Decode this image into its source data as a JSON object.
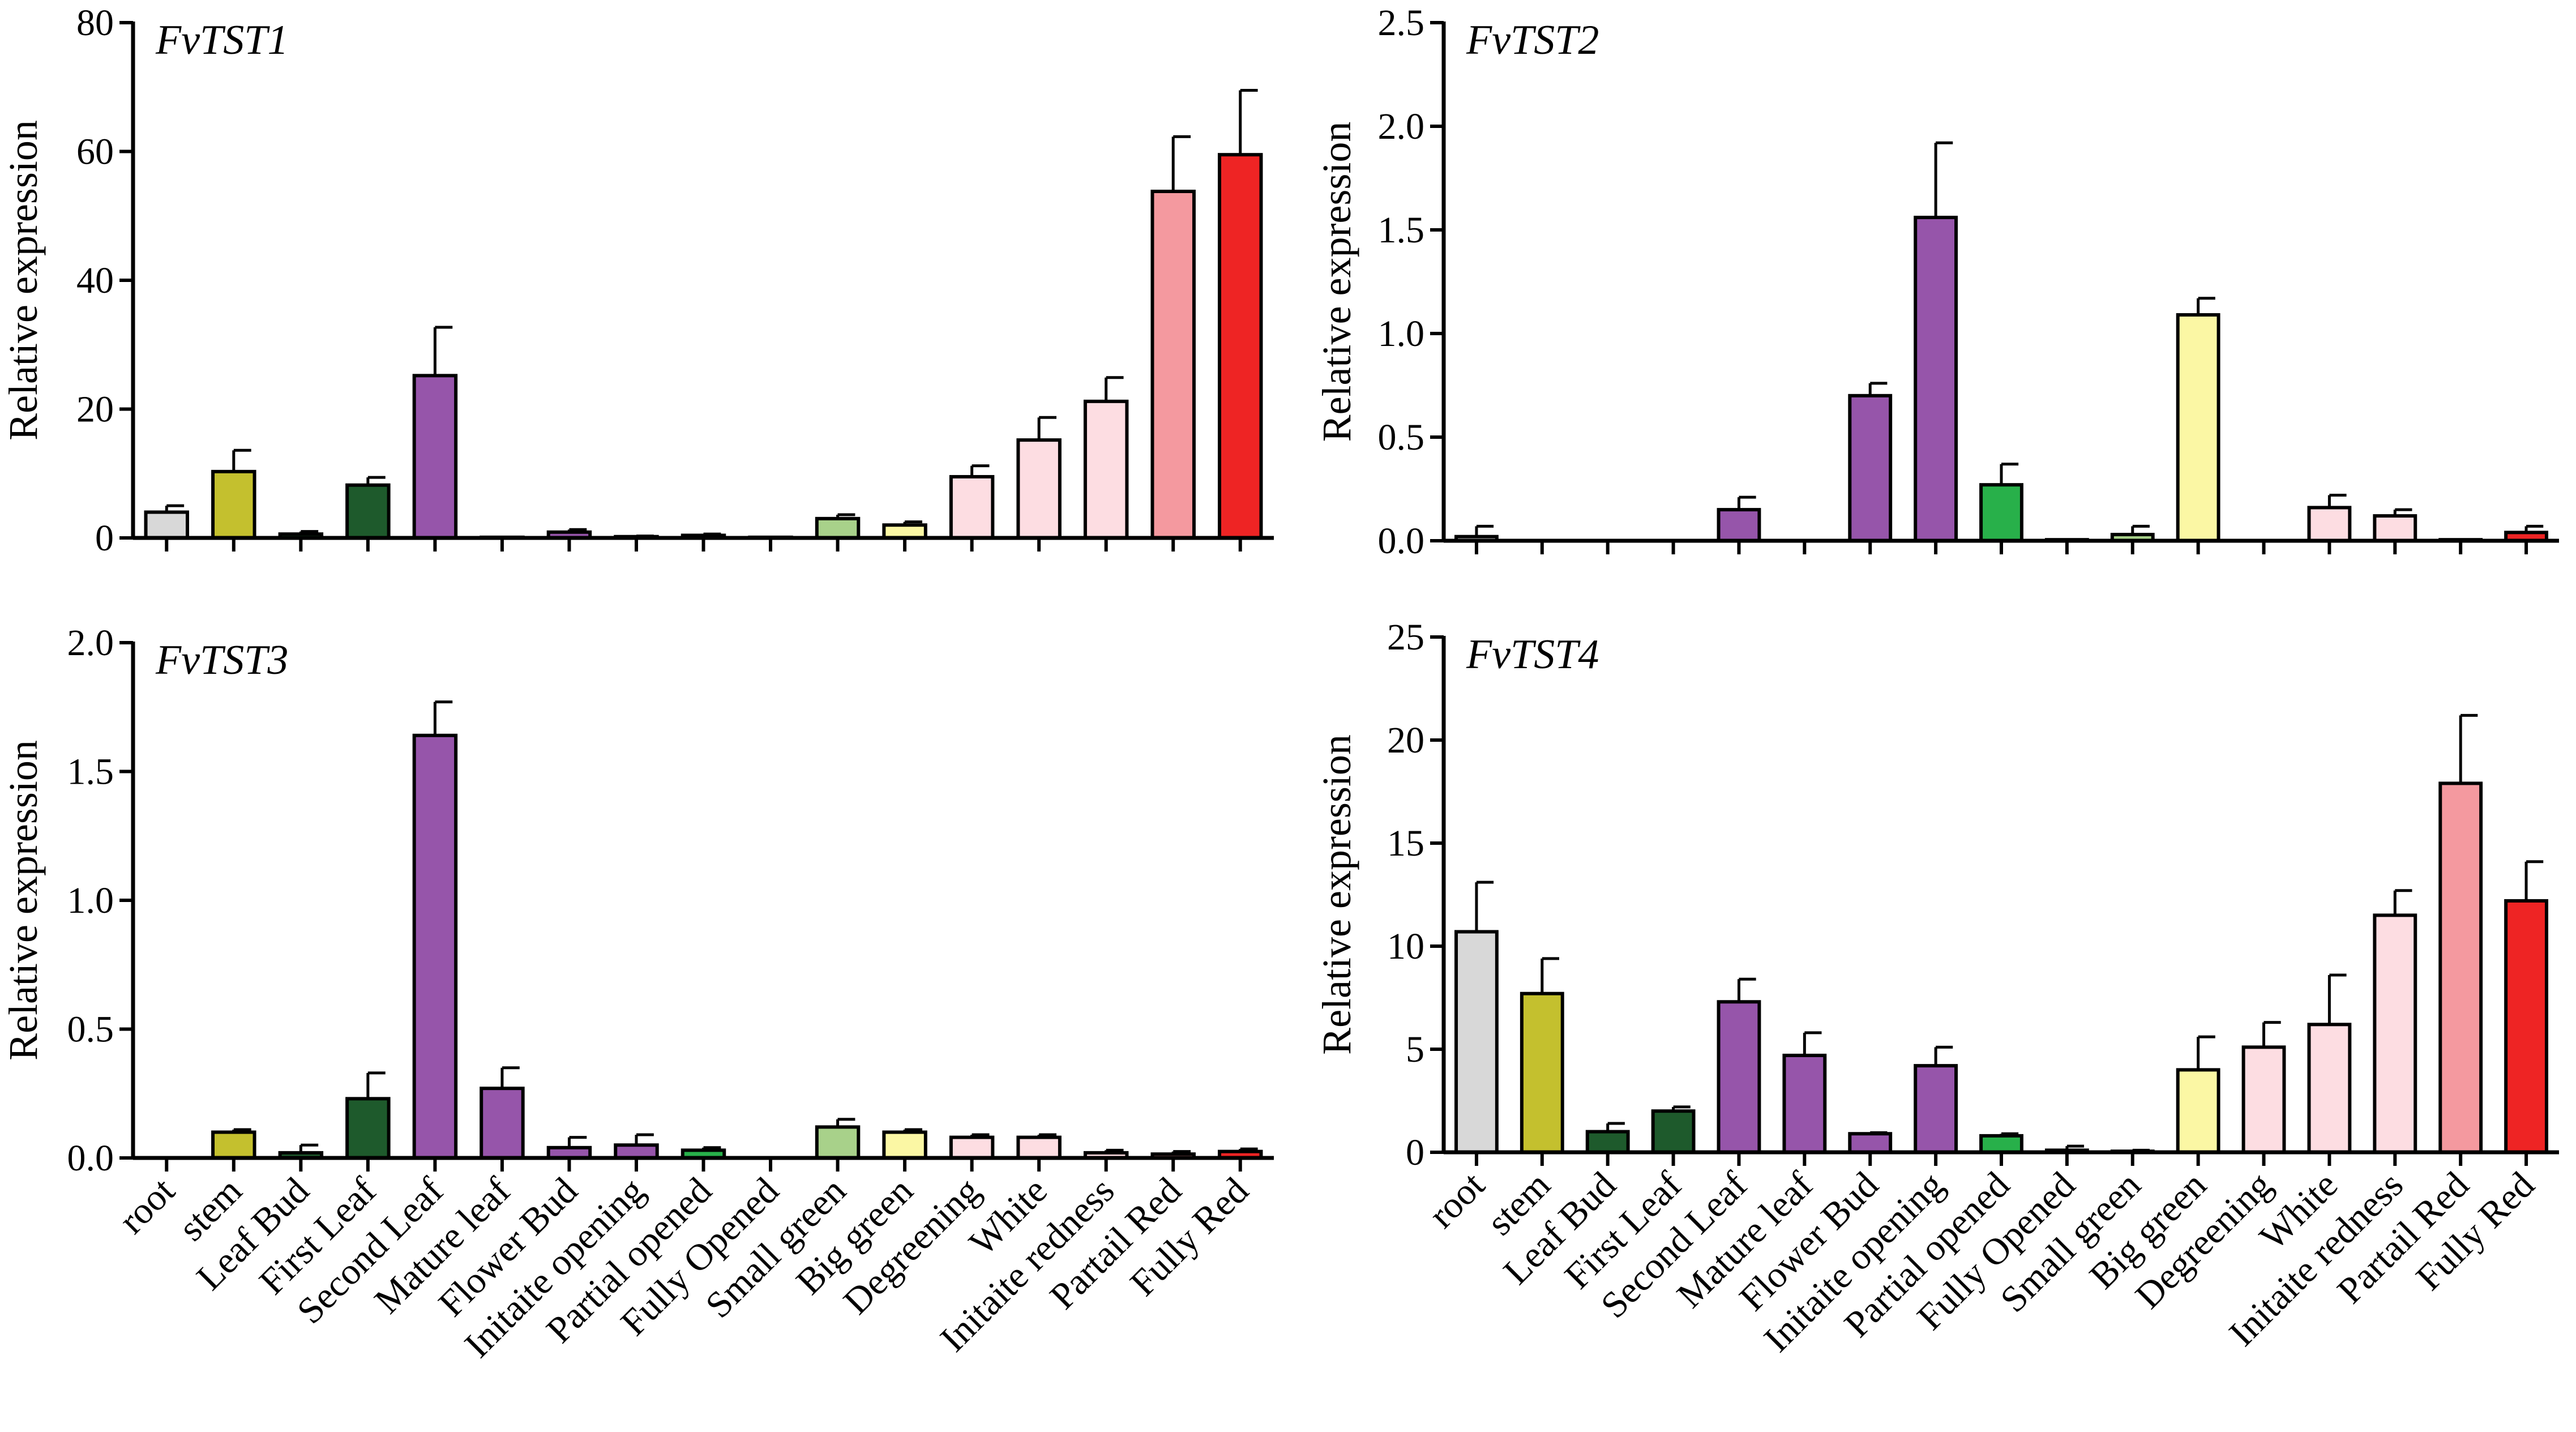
{
  "chart_data": [
    {
      "type": "bar",
      "title": "FvTST1",
      "ylabel": "Relative expression",
      "xlabel": "",
      "ylim": [
        0,
        80
      ],
      "yticks": [
        0,
        20,
        40,
        60,
        80
      ],
      "ytick_labels": [
        "0",
        "20",
        "40",
        "60",
        "80"
      ],
      "show_category_labels": false,
      "categories": [
        "root",
        "stem",
        "Leaf Bud",
        "First Leaf",
        "Second Leaf",
        "Mature leaf",
        "Flower Bud",
        "Initaite opening",
        "Partial opened",
        "Fully Opened",
        "Small green",
        "Big green",
        "Degreening",
        "White",
        "Initaite redness",
        "Partail Red",
        "Fully Red"
      ],
      "values": [
        4,
        10.3,
        0.6,
        8.2,
        25.2,
        0.1,
        0.9,
        0.2,
        0.4,
        0.1,
        3,
        2,
        9.5,
        15.2,
        21.2,
        53.8,
        59.5
      ],
      "errors": [
        1,
        3.3,
        0.4,
        1.2,
        7.5,
        0,
        0.4,
        0.1,
        0.2,
        0,
        0.6,
        0.5,
        1.7,
        3.5,
        3.7,
        8.5,
        10
      ]
    },
    {
      "type": "bar",
      "title": "FvTST2",
      "ylabel": "Relative expression",
      "xlabel": "",
      "ylim": [
        0,
        2.5
      ],
      "yticks": [
        0,
        0.5,
        1,
        1.5,
        2,
        2.5
      ],
      "ytick_labels": [
        "0.0",
        "0.5",
        "1.0",
        "1.5",
        "2.0",
        "2.5"
      ],
      "show_category_labels": false,
      "categories": [
        "root",
        "stem",
        "Leaf Bud",
        "First Leaf",
        "Second Leaf",
        "Mature leaf",
        "Flower Bud",
        "Initaite opening",
        "Partial opened",
        "Fully Opened",
        "Small green",
        "Big green",
        "Degreening",
        "White",
        "Initaite redness",
        "Partail Red",
        "Fully Red"
      ],
      "values": [
        0.02,
        0,
        0,
        0,
        0.15,
        0,
        0.7,
        1.56,
        0.27,
        0.005,
        0.03,
        1.09,
        0,
        0.16,
        0.12,
        0.005,
        0.04
      ],
      "errors": [
        0.05,
        0,
        0,
        0,
        0.06,
        0,
        0.06,
        0.36,
        0.1,
        0,
        0.04,
        0.08,
        0,
        0.06,
        0.03,
        0,
        0.03
      ]
    },
    {
      "type": "bar",
      "title": "FvTST3",
      "ylabel": "Relative expression",
      "xlabel": "",
      "ylim": [
        0,
        2
      ],
      "yticks": [
        0,
        0.5,
        1,
        1.5,
        2
      ],
      "ytick_labels": [
        "0.0",
        "0.5",
        "1.0",
        "1.5",
        "2.0"
      ],
      "show_category_labels": true,
      "categories": [
        "root",
        "stem",
        "Leaf Bud",
        "First Leaf",
        "Second Leaf",
        "Mature leaf",
        "Flower Bud",
        "Initaite opening",
        "Partial opened",
        "Fully Opened",
        "Small green",
        "Big green",
        "Degreening",
        "White",
        "Initaite redness",
        "Partail Red",
        "Fully Red"
      ],
      "values": [
        0,
        0.1,
        0.02,
        0.23,
        1.64,
        0.27,
        0.04,
        0.05,
        0.03,
        0,
        0.12,
        0.1,
        0.08,
        0.08,
        0.02,
        0.015,
        0.025
      ],
      "errors": [
        0,
        0.01,
        0.03,
        0.1,
        0.13,
        0.08,
        0.04,
        0.04,
        0.01,
        0,
        0.03,
        0.01,
        0.01,
        0.01,
        0.01,
        0.01,
        0.01
      ]
    },
    {
      "type": "bar",
      "title": "FvTST4",
      "ylabel": "Relative expression",
      "xlabel": "",
      "ylim": [
        0,
        25
      ],
      "yticks": [
        0,
        5,
        10,
        15,
        20,
        25
      ],
      "ytick_labels": [
        "0",
        "5",
        "10",
        "15",
        "20",
        "25"
      ],
      "show_category_labels": true,
      "categories": [
        "root",
        "stem",
        "Leaf Bud",
        "First Leaf",
        "Second Leaf",
        "Mature leaf",
        "Flower Bud",
        "Initaite opening",
        "Partial opened",
        "Fully Opened",
        "Small green",
        "Big green",
        "Degreening",
        "White",
        "Initaite redness",
        "Partail Red",
        "Fully Red"
      ],
      "values": [
        10.7,
        7.7,
        1,
        2,
        7.3,
        4.7,
        0.9,
        4.2,
        0.8,
        0.1,
        0.05,
        4,
        5.1,
        6.2,
        11.5,
        17.9,
        12.2
      ],
      "errors": [
        2.4,
        1.7,
        0.4,
        0.2,
        1.1,
        1.1,
        0.05,
        0.9,
        0.1,
        0.2,
        0.05,
        1.6,
        1.2,
        2.4,
        1.2,
        3.3,
        1.9
      ]
    }
  ],
  "colors": [
    "#d8d8d8",
    "#c4c02e",
    "#1e5a2c",
    "#1e5a2c",
    "#9655aa",
    "#9655aa",
    "#9655aa",
    "#9655aa",
    "#28b04a",
    "#28b04a",
    "#a8d18a",
    "#fbf7a4",
    "#fddde2",
    "#fddde2",
    "#fddde2",
    "#f4999f",
    "#ee2424"
  ]
}
